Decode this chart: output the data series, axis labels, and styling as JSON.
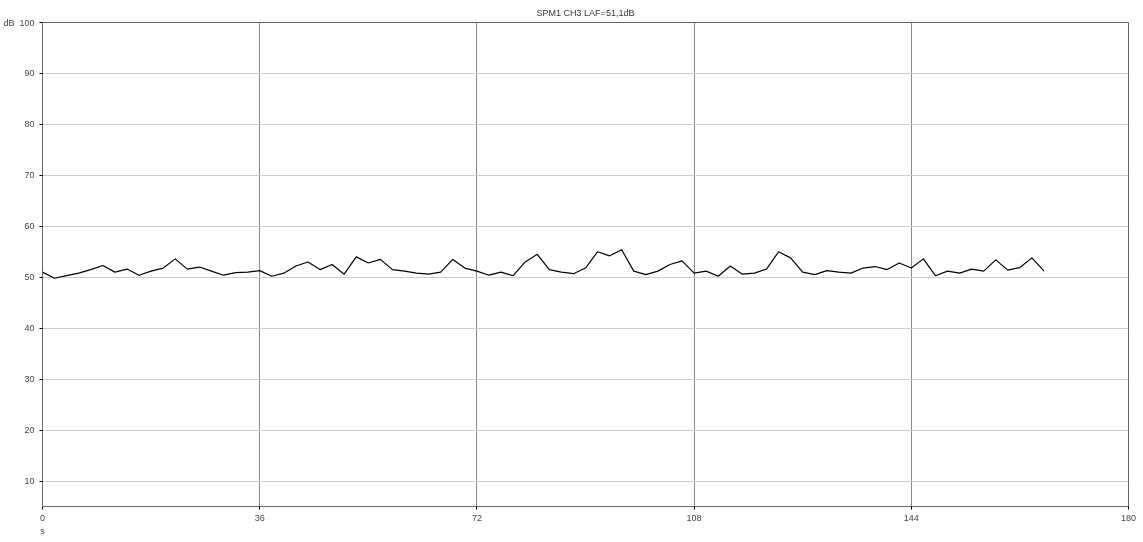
{
  "chart_data": {
    "type": "line",
    "title": "SPM1 CH3 LAF=51,1dB",
    "xlabel": "s",
    "ylabel": "dB",
    "x": [
      0,
      2,
      4,
      6,
      8,
      10,
      12,
      14,
      16,
      18,
      20,
      22,
      24,
      26,
      28,
      30,
      32,
      34,
      36,
      38,
      40,
      42,
      44,
      46,
      48,
      50,
      52,
      54,
      56,
      58,
      60,
      62,
      64,
      66,
      68,
      70,
      72,
      74,
      76,
      78,
      80,
      82,
      84,
      86,
      88,
      90,
      92,
      94,
      96,
      98,
      100,
      102,
      104,
      106,
      108,
      110,
      112,
      114,
      116,
      118,
      120,
      122,
      124,
      126,
      128,
      130,
      132,
      134,
      136,
      138,
      140,
      142,
      144,
      146,
      148,
      150,
      152,
      154,
      156,
      158,
      160,
      162,
      164,
      166
    ],
    "series": [
      {
        "color": "#000000",
        "values": [
          51,
          49.8,
          50.3,
          50.8,
          51.5,
          52.3,
          51,
          51.6,
          50.4,
          51.2,
          51.8,
          53.6,
          51.6,
          52,
          51.2,
          50.4,
          50.9,
          51,
          51.3,
          50.2,
          50.8,
          52.2,
          53,
          51.5,
          52.5,
          50.6,
          54,
          52.8,
          53.5,
          51.5,
          51.2,
          50.8,
          50.6,
          51,
          53.5,
          51.8,
          51.2,
          50.4,
          51,
          50.3,
          53,
          54.5,
          51.5,
          51,
          50.7,
          51.8,
          55,
          54.2,
          55.4,
          51.2,
          50.5,
          51.2,
          52.5,
          53.2,
          50.8,
          51.2,
          50.2,
          52.2,
          50.6,
          50.8,
          51.6,
          55,
          53.8,
          51,
          50.5,
          51.3,
          51,
          50.8,
          51.8,
          52.1,
          51.5,
          52.8,
          51.8,
          53.6,
          50.3,
          51.2,
          50.8,
          51.6,
          51.2,
          53.4,
          51.4,
          51.9,
          53.8,
          51.2
        ]
      }
    ],
    "xlim": [
      0,
      180
    ],
    "xticks": [
      0,
      36,
      72,
      108,
      144,
      180
    ],
    "ylim": [
      5,
      100
    ],
    "yticks": [
      10,
      20,
      30,
      40,
      50,
      60,
      70,
      80,
      90,
      100
    ],
    "grid": true,
    "marker": "none",
    "line_style": "solid"
  }
}
